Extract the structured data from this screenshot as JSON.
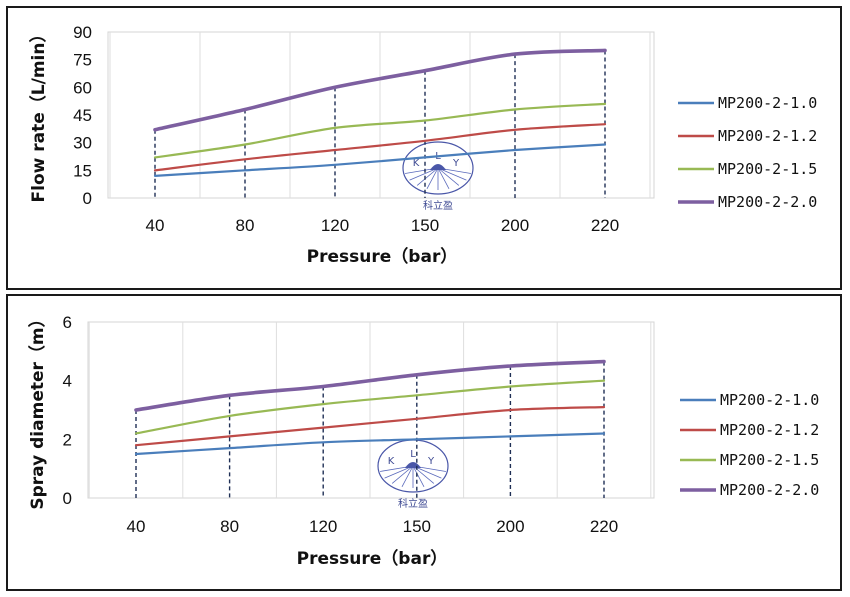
{
  "chart_data": [
    {
      "type": "line",
      "x": [
        "40",
        "80",
        "120",
        "150",
        "200",
        "220"
      ],
      "xlabel": "Pressure（bar）",
      "ylabel": "Flow rate（L/min）",
      "ylim": [
        0,
        90
      ],
      "yticks": [
        "0",
        "15",
        "30",
        "45",
        "60",
        "75",
        "90"
      ],
      "grid": "vertical",
      "legend_position": "right",
      "series": [
        {
          "name": "MP200-2-1.0",
          "color": "#4a7ebb",
          "values": [
            12,
            15,
            18,
            22,
            26,
            29
          ]
        },
        {
          "name": "MP200-2-1.2",
          "color": "#be4b48",
          "values": [
            15,
            21,
            26,
            31,
            37,
            40
          ]
        },
        {
          "name": "MP200-2-1.5",
          "color": "#98b954",
          "values": [
            22,
            29,
            38,
            42,
            48,
            51
          ]
        },
        {
          "name": "MP200-2-2.0",
          "color": "#7d5fa0",
          "values": [
            37,
            48,
            60,
            69,
            78,
            80
          ]
        }
      ],
      "watermark": {
        "letters": [
          "K",
          "L",
          "Y"
        ],
        "caption": "科立盈"
      }
    },
    {
      "type": "line",
      "x": [
        "40",
        "80",
        "120",
        "150",
        "200",
        "220"
      ],
      "xlabel": "Pressure（bar）",
      "ylabel": "Spray diameter（m）",
      "ylim": [
        0,
        6
      ],
      "yticks": [
        "0",
        "2",
        "4",
        "6"
      ],
      "grid": "vertical",
      "legend_position": "right",
      "series": [
        {
          "name": "MP200-2-1.0",
          "color": "#4a7ebb",
          "values": [
            1.5,
            1.7,
            1.9,
            2.0,
            2.1,
            2.2
          ]
        },
        {
          "name": "MP200-2-1.2",
          "color": "#be4b48",
          "values": [
            1.8,
            2.1,
            2.4,
            2.7,
            3.0,
            3.1
          ]
        },
        {
          "name": "MP200-2-1.5",
          "color": "#98b954",
          "values": [
            2.2,
            2.8,
            3.2,
            3.5,
            3.8,
            4.0
          ]
        },
        {
          "name": "MP200-2-2.0",
          "color": "#7d5fa0",
          "values": [
            3.0,
            3.5,
            3.8,
            4.2,
            4.5,
            4.65
          ]
        }
      ],
      "watermark": {
        "letters": [
          "K",
          "L",
          "Y"
        ],
        "caption": "科立盈"
      }
    }
  ]
}
